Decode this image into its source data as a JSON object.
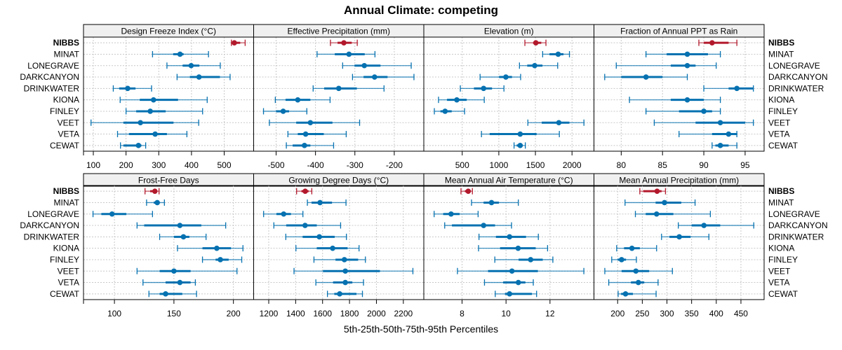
{
  "chart_data": {
    "type": "dot-interval",
    "title": "Annual Climate: competing",
    "xlabel": "5th-25th-50th-75th-95th Percentiles",
    "colors": {
      "highlight": "#b2182b",
      "default": "#0571b0"
    },
    "highlight_site": "NIBBS",
    "sites": [
      "NIBBS",
      "MINAT",
      "LONEGRAVE",
      "DARKCANYON",
      "DRINKWATER",
      "KIONA",
      "FINLEY",
      "VEET",
      "VETA",
      "CEWAT"
    ],
    "percentile_order": [
      "p5",
      "p25",
      "p50",
      "p75",
      "p95"
    ],
    "panels": [
      {
        "title": "Design Freeze Index (°C)",
        "xlim": [
          70,
          590
        ],
        "ticks": [
          100,
          200,
          300,
          400,
          500
        ],
        "values": {
          "NIBBS": [
            522,
            525,
            531,
            549,
            564
          ],
          "MINAT": [
            281,
            344,
            365,
            376,
            452
          ],
          "LONEGRAVE": [
            325,
            373,
            399,
            424,
            488
          ],
          "DARKCANYON": [
            356,
            395,
            423,
            487,
            518
          ],
          "DRINKWATER": [
            161,
            179,
            205,
            229,
            278
          ],
          "KIONA": [
            182,
            242,
            284,
            359,
            448
          ],
          "FINLEY": [
            200,
            231,
            274,
            321,
            434
          ],
          "VEET": [
            93,
            192,
            244,
            345,
            422
          ],
          "VETA": [
            174,
            209,
            289,
            325,
            386
          ],
          "CEWAT": [
            183,
            192,
            238,
            247,
            260
          ]
        }
      },
      {
        "title": "Effective Precipitation (mm)",
        "xlim": [
          -557,
          -125
        ],
        "ticks": [
          -500,
          -400,
          -300,
          -200
        ],
        "values": {
          "NIBBS": [
            -362,
            -344,
            -328,
            -308,
            -294
          ],
          "MINAT": [
            -396,
            -351,
            -315,
            -275,
            -249
          ],
          "LONEGRAVE": [
            -331,
            -301,
            -276,
            -235,
            -157
          ],
          "DARKCANYON": [
            -306,
            -278,
            -250,
            -217,
            -150
          ],
          "DRINKWATER": [
            -406,
            -378,
            -341,
            -295,
            -226
          ],
          "KIONA": [
            -502,
            -476,
            -445,
            -413,
            -363
          ],
          "FINLEY": [
            -532,
            -500,
            -482,
            -467,
            -422
          ],
          "VEET": [
            -517,
            -449,
            -413,
            -357,
            -288
          ],
          "VETA": [
            -470,
            -445,
            -425,
            -379,
            -322
          ],
          "CEWAT": [
            -474,
            -458,
            -428,
            -413,
            -354
          ]
        }
      },
      {
        "title": "Elevation (m)",
        "xlim": [
          -25,
          2300
        ],
        "ticks": [
          500,
          1000,
          1500,
          2000
        ],
        "values": {
          "NIBBS": [
            1356,
            1468,
            1506,
            1580,
            1644
          ],
          "MINAT": [
            1599,
            1692,
            1811,
            1884,
            1965
          ],
          "LONEGRAVE": [
            1282,
            1388,
            1490,
            1596,
            1804
          ],
          "DARKCANYON": [
            744,
            1003,
            1096,
            1180,
            1298
          ],
          "DRINKWATER": [
            474,
            660,
            792,
            907,
            1070
          ],
          "KIONA": [
            176,
            292,
            426,
            561,
            801
          ],
          "FINLEY": [
            119,
            202,
            266,
            356,
            532
          ],
          "VEET": [
            1397,
            1586,
            1820,
            1965,
            2163
          ],
          "VETA": [
            763,
            875,
            1292,
            1516,
            1827
          ],
          "CEWAT": [
            1208,
            1244,
            1292,
            1324,
            1362
          ]
        }
      },
      {
        "title": "Fraction of Annual PPT as Rain",
        "xlim": [
          76.7,
          97.3
        ],
        "ticks": [
          80,
          85,
          90,
          95
        ],
        "values": {
          "NIBBS": [
            89.4,
            90,
            91,
            93,
            94
          ],
          "MINAT": [
            83,
            85.5,
            88,
            90.5,
            92
          ],
          "LONEGRAVE": [
            79.4,
            86,
            88,
            89,
            91.5
          ],
          "DARKCANYON": [
            78,
            80,
            83,
            85,
            88
          ],
          "DRINKWATER": [
            90,
            93,
            94,
            96,
            96
          ],
          "KIONA": [
            81,
            86,
            88,
            90,
            92
          ],
          "FINLEY": [
            83,
            87,
            90,
            91,
            92
          ],
          "VEET": [
            84,
            89,
            92,
            95,
            96
          ],
          "VETA": [
            87,
            91,
            93,
            94,
            94
          ],
          "CEWAT": [
            91,
            91.4,
            92,
            93,
            94
          ]
        }
      },
      {
        "title": "Frost-Free Days",
        "xlim": [
          74,
          217
        ],
        "ticks": [
          100,
          150,
          200
        ],
        "values": {
          "NIBBS": [
            125.7,
            130,
            134,
            136,
            137.5
          ],
          "MINAT": [
            127,
            133,
            136,
            138,
            142
          ],
          "LONEGRAVE": [
            82,
            89,
            98,
            110,
            132
          ],
          "DARKCANYON": [
            119,
            125,
            155,
            173,
            193.5
          ],
          "DRINKWATER": [
            138,
            150,
            158,
            163,
            177
          ],
          "KIONA": [
            153,
            174,
            186,
            198,
            208
          ],
          "FINLEY": [
            174,
            185,
            189,
            196,
            207
          ],
          "VEET": [
            119,
            138,
            150,
            164,
            203
          ],
          "VETA": [
            124,
            143,
            155,
            164,
            168
          ],
          "CEWAT": [
            129,
            138,
            143,
            157,
            169
          ]
        }
      },
      {
        "title": "Growing Degree Days (°C)",
        "xlim": [
          1088,
          2352
        ],
        "ticks": [
          1200,
          1400,
          1600,
          1800,
          2000,
          2200
        ],
        "values": {
          "NIBBS": [
            1407,
            1443,
            1471,
            1496,
            1520
          ],
          "MINAT": [
            1487,
            1518,
            1581,
            1670,
            1774
          ],
          "LONEGRAVE": [
            1162,
            1257,
            1311,
            1365,
            1454
          ],
          "DARKCANYON": [
            1238,
            1330,
            1470,
            1557,
            1734
          ],
          "DRINKWATER": [
            1327,
            1452,
            1576,
            1690,
            1777
          ],
          "KIONA": [
            1402,
            1557,
            1675,
            1786,
            1871
          ],
          "FINLEY": [
            1536,
            1696,
            1762,
            1864,
            1918
          ],
          "VEET": [
            1388,
            1603,
            1769,
            2026,
            2271
          ],
          "VETA": [
            1550,
            1678,
            1769,
            1821,
            1904
          ],
          "CEWAT": [
            1636,
            1687,
            1727,
            1852,
            1896
          ]
        }
      },
      {
        "title": "Mean Annual Air Temperature (°C)",
        "xlim": [
          6.26,
          14.0
        ],
        "ticks": [
          8,
          10,
          12
        ],
        "values": {
          "NIBBS": [
            7.95,
            8.13,
            8.28,
            8.4,
            8.47
          ],
          "MINAT": [
            8.43,
            8.98,
            9.34,
            9.68,
            10.56
          ],
          "LONEGRAVE": [
            6.73,
            7.14,
            7.5,
            7.89,
            8.73
          ],
          "DARKCANYON": [
            7.21,
            7.54,
            8.98,
            9.5,
            10.25
          ],
          "DRINKWATER": [
            8.77,
            9.54,
            10.16,
            10.91,
            11.47
          ],
          "KIONA": [
            8.75,
            9.73,
            10.55,
            11.35,
            11.89
          ],
          "FINLEY": [
            9.49,
            10.57,
            11.12,
            11.67,
            12.13
          ],
          "VEET": [
            7.79,
            9.18,
            10.27,
            11.45,
            13.54
          ],
          "VETA": [
            9.02,
            9.87,
            10.56,
            10.88,
            11.24
          ],
          "CEWAT": [
            9.51,
            9.95,
            10.16,
            11.18,
            11.39
          ]
        }
      },
      {
        "title": "Mean Annual Precipitation (mm)",
        "xlim": [
          152,
          497
        ],
        "ticks": [
          200,
          250,
          300,
          350,
          400,
          450
        ],
        "values": {
          "NIBBS": [
            245,
            252,
            280,
            289,
            297
          ],
          "MINAT": [
            215,
            277,
            295,
            329,
            357
          ],
          "LONEGRAVE": [
            236,
            257,
            279,
            313,
            388
          ],
          "DARKCANYON": [
            323,
            350,
            375,
            408,
            476
          ],
          "DRINKWATER": [
            289,
            305,
            325,
            348,
            385
          ],
          "KIONA": [
            198,
            213,
            229,
            245,
            279
          ],
          "FINLEY": [
            188,
            200,
            208,
            217,
            238
          ],
          "VEET": [
            174,
            208,
            237,
            264,
            311
          ],
          "VETA": [
            182,
            227,
            242,
            254,
            282
          ],
          "CEWAT": [
            201,
            207,
            216,
            231,
            278
          ]
        }
      }
    ]
  }
}
